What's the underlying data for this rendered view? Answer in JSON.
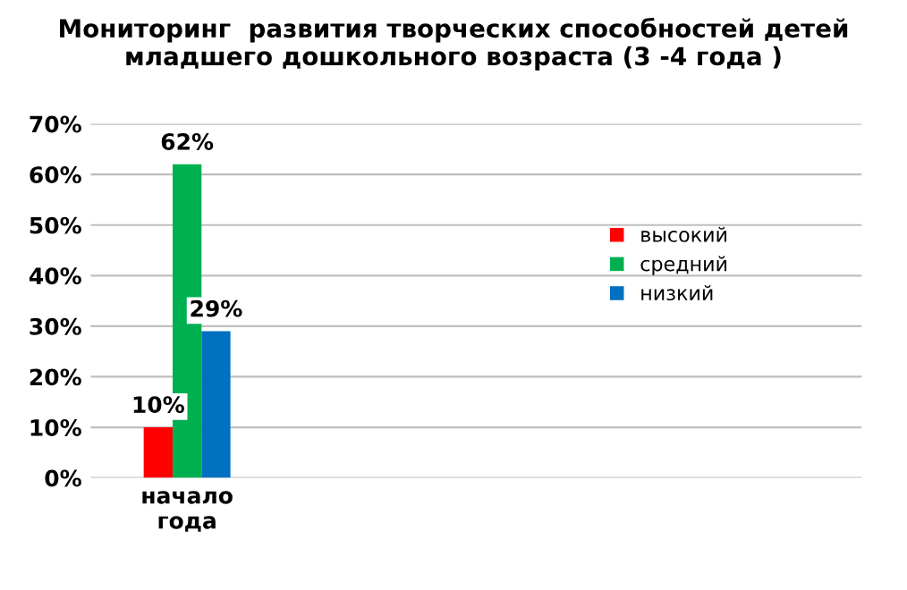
{
  "chart_data": {
    "type": "bar",
    "title": "Мониторинг  развития творческих способностей детей младшего дошкольного возраста (3 -4 года )",
    "categories": [
      "начало года"
    ],
    "series": [
      {
        "name": "высокий",
        "color": "#ff0000",
        "values": [
          10
        ],
        "value_labels": [
          "10%"
        ]
      },
      {
        "name": "средний",
        "color": "#00b050",
        "values": [
          62
        ],
        "value_labels": [
          "62%"
        ]
      },
      {
        "name": "низкий",
        "color": "#0070c0",
        "values": [
          29
        ],
        "value_labels": [
          "29%"
        ]
      }
    ],
    "ylim": [
      0,
      70
    ],
    "yticks": [
      {
        "value": 0,
        "label": "0%"
      },
      {
        "value": 10,
        "label": "10%"
      },
      {
        "value": 20,
        "label": "20%"
      },
      {
        "value": 30,
        "label": "30%"
      },
      {
        "value": 40,
        "label": "40%"
      },
      {
        "value": 50,
        "label": "50%"
      },
      {
        "value": 60,
        "label": "60%"
      },
      {
        "value": 70,
        "label": "70%"
      }
    ],
    "grid": "y",
    "legend": "right"
  }
}
